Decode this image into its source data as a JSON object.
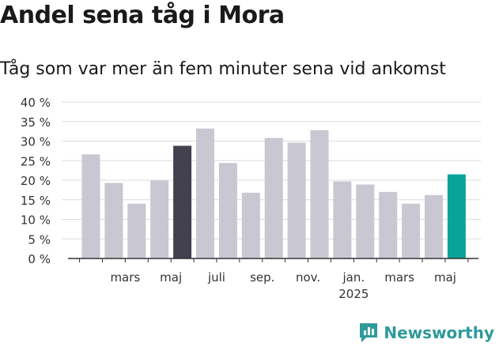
{
  "page": {
    "title": "Andel sena tåg i Mora",
    "subtitle": "Tåg som var mer än fem minuter sena vid ankomst"
  },
  "brand": {
    "name": "Newsworthy",
    "icon": "newsworthy-logo-icon",
    "color": "#2e9a9a"
  },
  "chart_data": {
    "type": "bar",
    "categories": [
      "2024-02",
      "2024-03",
      "2024-04",
      "2024-05",
      "2024-06",
      "2024-07",
      "2024-08",
      "2024-09",
      "2024-10",
      "2024-11",
      "2024-12",
      "2025-01",
      "2025-02",
      "2025-03",
      "2025-04",
      "2025-05",
      "2025-06"
    ],
    "values": [
      26.6,
      19.3,
      14.0,
      19.9,
      28.8,
      33.2,
      24.4,
      16.8,
      30.8,
      29.6,
      32.8,
      19.7,
      18.9,
      17.0,
      14.0,
      16.2,
      21.5
    ],
    "highlight": {
      "2024-06": "#42414d",
      "2025-06": "#0aa39a"
    },
    "bar_color": "#c8c7d2",
    "ylim": [
      0,
      40
    ],
    "yticks": [
      0,
      5,
      10,
      15,
      20,
      25,
      30,
      35,
      40
    ],
    "ytick_labels": [
      "0 %",
      "5 %",
      "10 %",
      "15 %",
      "20 %",
      "25 %",
      "30 %",
      "35 %",
      "40 %"
    ],
    "xticks": [
      {
        "category": "2024-03",
        "label": "mars"
      },
      {
        "category": "2024-05",
        "label": "maj"
      },
      {
        "category": "2024-07",
        "label": "juli"
      },
      {
        "category": "2024-09",
        "label": "sep."
      },
      {
        "category": "2024-11",
        "label": "nov."
      },
      {
        "category": "2025-01",
        "label": "jan.",
        "sublabel": "2025"
      },
      {
        "category": "2025-03",
        "label": "mars"
      },
      {
        "category": "2025-05",
        "label": "maj"
      }
    ],
    "grid": true,
    "xlabel": "",
    "ylabel": ""
  }
}
